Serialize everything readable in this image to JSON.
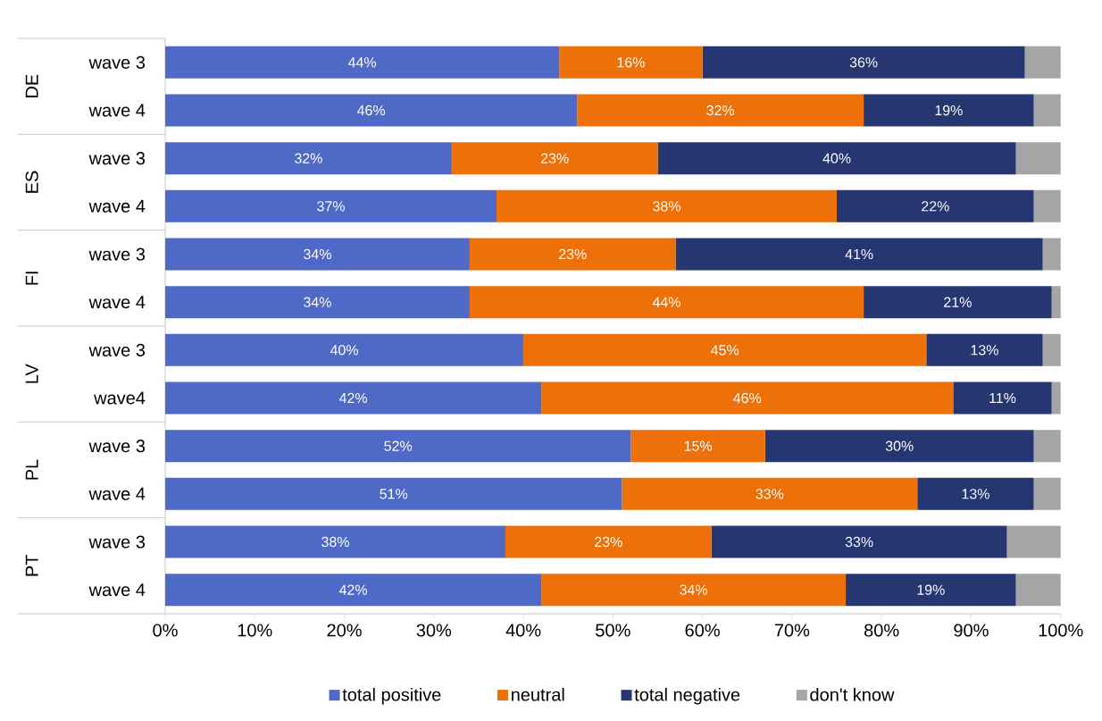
{
  "chart_data": {
    "type": "bar",
    "orientation": "horizontal",
    "stacked": true,
    "categories": [
      "wave 3",
      "wave 4",
      "wave 3",
      "wave 4",
      "wave 3",
      "wave 4",
      "wave 3",
      "wave4",
      "wave 3",
      "wave 4",
      "wave 3",
      "wave 4"
    ],
    "annotations": [
      "DE",
      "ES",
      "FI",
      "LV",
      "PL",
      "PT"
    ],
    "series": [
      {
        "name": "total positive",
        "color": "#4f69c6",
        "values": [
          44,
          46,
          32,
          37,
          34,
          34,
          40,
          42,
          52,
          51,
          38,
          42
        ],
        "value_labels": [
          "44%",
          "46%",
          "32%",
          "37%",
          "34%",
          "34%",
          "40%",
          "42%",
          "52%",
          "51%",
          "38%",
          "42%"
        ]
      },
      {
        "name": "neutral",
        "color": "#ed7008",
        "values": [
          16,
          32,
          23,
          38,
          23,
          44,
          45,
          46,
          15,
          33,
          23,
          34
        ],
        "value_labels": [
          "16%",
          "32%",
          "23%",
          "38%",
          "23%",
          "44%",
          "45%",
          "46%",
          "15%",
          "33%",
          "23%",
          "34%"
        ]
      },
      {
        "name": "total negative",
        "color": "#253670",
        "values": [
          36,
          19,
          40,
          22,
          41,
          21,
          13,
          11,
          30,
          13,
          33,
          19
        ],
        "value_labels": [
          "36%",
          "19%",
          "40%",
          "22%",
          "41%",
          "21%",
          "13%",
          "11%",
          "30%",
          "13%",
          "33%",
          "19%"
        ]
      },
      {
        "name": "don't know",
        "color": "#a5a5a5",
        "values": [
          4,
          3,
          5,
          3,
          2,
          1,
          2,
          1,
          3,
          3,
          6,
          5
        ]
      }
    ],
    "xlim": [
      0,
      100
    ],
    "xticks": [
      {
        "value": 0,
        "label": "0%"
      },
      {
        "value": 10,
        "label": "10%"
      },
      {
        "value": 20,
        "label": "20%"
      },
      {
        "value": 30,
        "label": "30%"
      },
      {
        "value": 40,
        "label": "40%"
      },
      {
        "value": 50,
        "label": "50%"
      },
      {
        "value": 60,
        "label": "60%"
      },
      {
        "value": 70,
        "label": "70%"
      },
      {
        "value": 80,
        "label": "80%"
      },
      {
        "value": 90,
        "label": "90%"
      },
      {
        "value": 100,
        "label": "100%"
      }
    ],
    "legend": "bottom"
  }
}
